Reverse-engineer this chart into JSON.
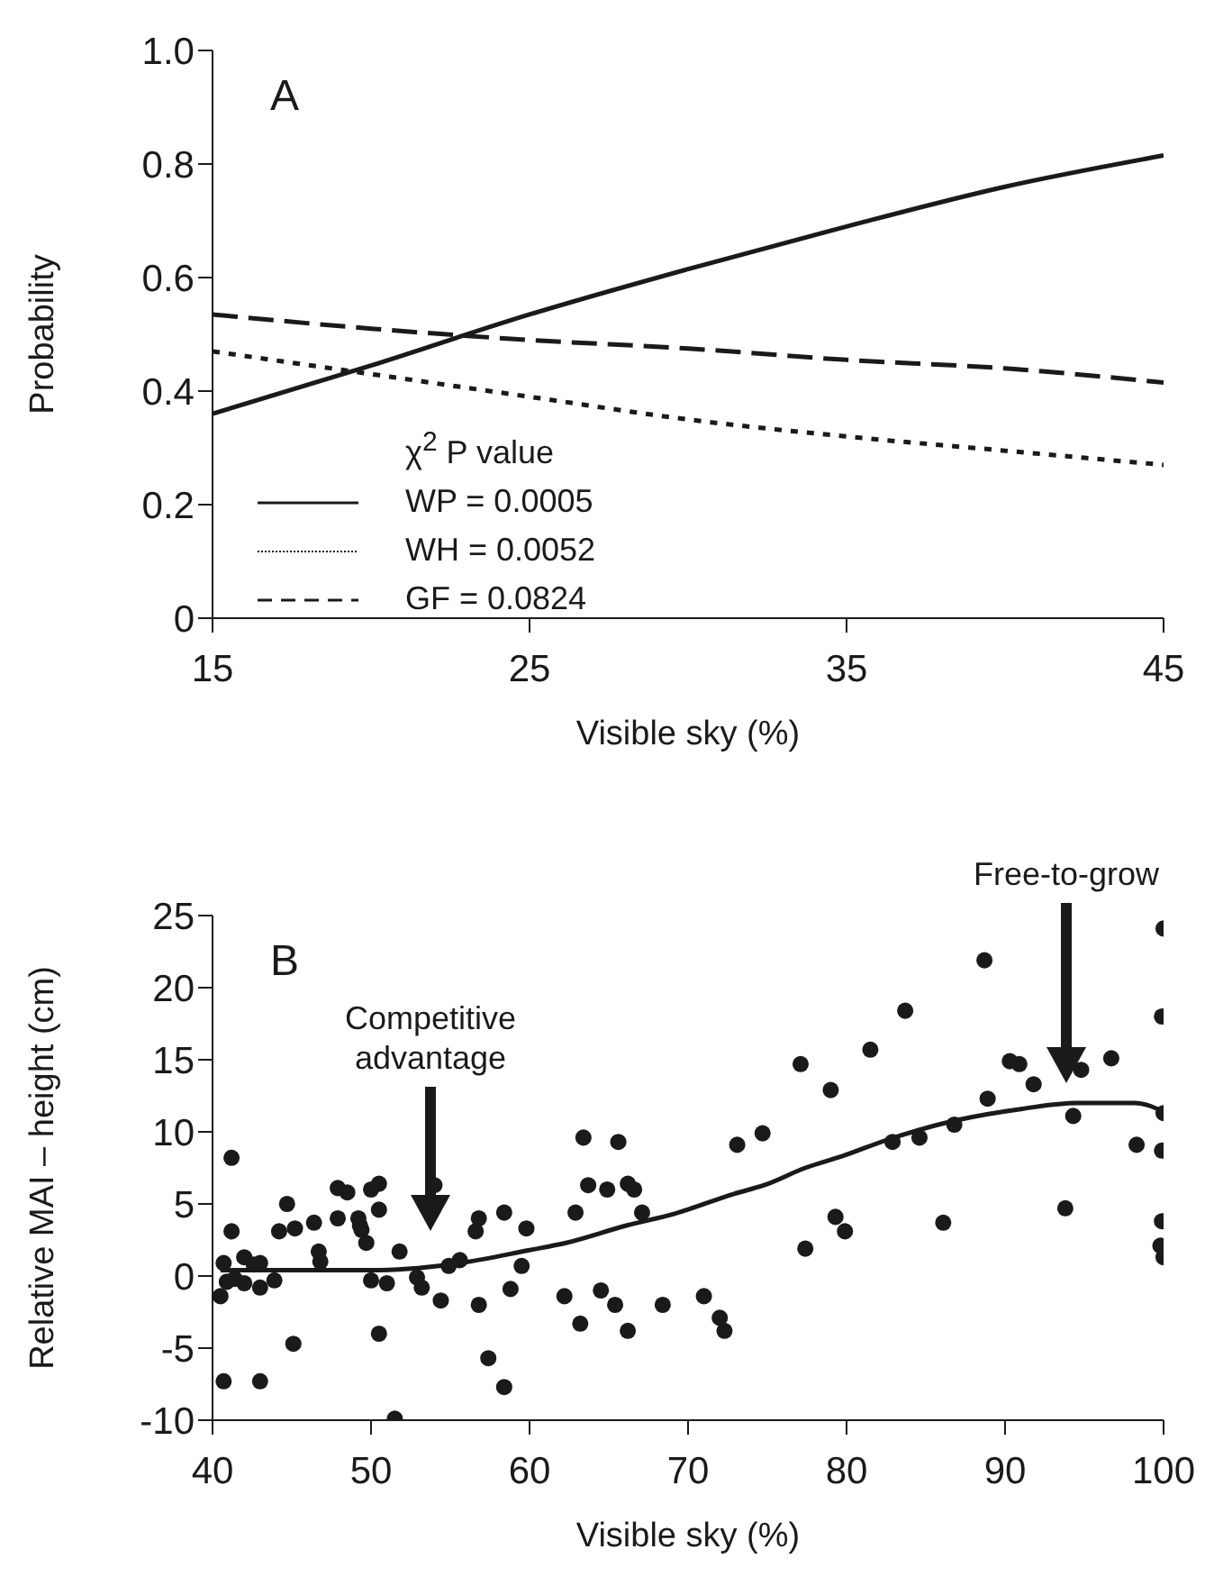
{
  "chart_data": [
    {
      "type": "line",
      "xlabel": "Visible sky (%)",
      "ylabel": "Probability",
      "legend_title": "χ$^{2}$ P value",
      "annotations": [
        "A"
      ],
      "x": [
        15,
        20,
        25,
        30,
        35,
        40,
        45
      ],
      "xlim": [
        15,
        45
      ],
      "xticks": [
        15,
        25,
        35,
        45
      ],
      "ylim": [
        0,
        1
      ],
      "yticks": [
        0,
        0.2,
        0.4,
        0.6,
        0.8,
        {
          "value": 1,
          "label": "1.0"
        }
      ],
      "legend": "bottom left",
      "grid": false,
      "series": [
        {
          "name": "WP = 0.0005",
          "color": "#1a1a1a",
          "line_style": "solid",
          "values": [
            0.36,
            0.445,
            0.535,
            0.615,
            0.69,
            0.76,
            0.815
          ]
        },
        {
          "name": "WH = 0.0052",
          "color": "#1a1a1a",
          "line_style": "dotted",
          "values": [
            0.47,
            0.43,
            0.39,
            0.35,
            0.32,
            0.295,
            0.27
          ]
        },
        {
          "name": "GF = 0.0824",
          "color": "#1a1a1a",
          "line_style": "dashed",
          "values": [
            0.535,
            0.51,
            0.49,
            0.475,
            0.455,
            0.44,
            0.415
          ]
        }
      ]
    },
    {
      "type": "scatter",
      "xlabel": "Visible sky (%)",
      "ylabel": "Relative MAI – height (cm)",
      "annotations": [
        "B",
        "Competitive\nadvantage",
        "Free-to-grow"
      ],
      "xlim": [
        40,
        100
      ],
      "xticks": [
        40,
        50,
        60,
        70,
        80,
        90,
        100
      ],
      "ylim": [
        -10,
        25
      ],
      "yticks": [
        -10,
        -5,
        0,
        5,
        10,
        15,
        20,
        25
      ],
      "legend": false,
      "grid": false,
      "marker": "circle",
      "series": [
        {
          "color": "#1a1a1a",
          "x": [
            40.5,
            40.7,
            40.9,
            40.7,
            41.2,
            41.2,
            41.4,
            42.0,
            42.0,
            42.6,
            43.0,
            43.0,
            43.0,
            43.9,
            44.2,
            44.7,
            45.2,
            45.1,
            46.4,
            46.7,
            46.8,
            47.9,
            47.9,
            48.5,
            49.2,
            49.3,
            49.4,
            49.7,
            50.0,
            50.5,
            50.5,
            50.0,
            50.5,
            51.0,
            51.5,
            51.8,
            52.9,
            53.2,
            54.0,
            54.4,
            54.9,
            55.6,
            56.6,
            56.8,
            56.8,
            57.4,
            58.4,
            58.4,
            58.8,
            59.5,
            59.8,
            62.2,
            62.9,
            63.2,
            63.4,
            63.7,
            64.5,
            64.9,
            65.4,
            65.6,
            66.2,
            66.2,
            66.6,
            67.1,
            68.4,
            71.0,
            72.0,
            72.3,
            73.1,
            74.7,
            77.1,
            77.4,
            79.0,
            79.3,
            79.9,
            81.5,
            82.9,
            83.7,
            84.6,
            86.1,
            86.8,
            88.7,
            88.9,
            90.3,
            90.9,
            91.8,
            93.8,
            94.3,
            94.8,
            96.7,
            98.3,
            99.9,
            99.9,
            99.8,
            100.0,
            100.0,
            99.9,
            100.0
          ],
          "values": [
            -1.4,
            0.9,
            -0.4,
            -7.3,
            8.2,
            3.1,
            -0.2,
            1.3,
            -0.5,
            0.8,
            0.9,
            -0.8,
            -7.3,
            -0.3,
            3.1,
            5.0,
            3.3,
            -4.7,
            3.7,
            1.7,
            1.0,
            6.1,
            4.0,
            5.8,
            4.0,
            3.5,
            3.2,
            2.3,
            6.0,
            6.4,
            4.6,
            -0.3,
            -4.0,
            -0.5,
            -9.9,
            1.7,
            -0.1,
            -0.8,
            6.3,
            -1.7,
            0.7,
            1.1,
            3.1,
            4.0,
            -2.0,
            -5.7,
            4.4,
            -7.7,
            -0.9,
            0.7,
            3.3,
            -1.4,
            4.4,
            -3.3,
            9.6,
            6.3,
            -1.0,
            6.0,
            -2.0,
            9.3,
            -3.8,
            6.4,
            6.0,
            4.4,
            -2.0,
            -1.4,
            -2.9,
            -3.8,
            9.1,
            9.9,
            14.7,
            1.9,
            12.9,
            4.1,
            3.1,
            15.7,
            9.3,
            18.4,
            9.6,
            3.7,
            10.5,
            21.9,
            12.3,
            14.9,
            14.7,
            13.3,
            4.7,
            11.1,
            14.3,
            15.1,
            9.1,
            8.7,
            3.8,
            2.1,
            1.3,
            11.3,
            18.0,
            24.1
          ]
        },
        {
          "type": "line",
          "color": "#1a1a1a",
          "line_style": "solid",
          "marker": "none",
          "x": [
            40.5,
            45,
            50,
            55,
            60,
            62.3,
            66.1,
            69.1,
            72.9,
            74.8,
            77.4,
            79.7,
            82.7,
            86.9,
            91.1,
            94.5,
            98.2,
            100
          ],
          "values": [
            0.4,
            0.4,
            0.4,
            0.8,
            1.8,
            2.3,
            3.5,
            4.3,
            5.7,
            6.3,
            7.5,
            8.3,
            9.5,
            10.8,
            11.6,
            12.0,
            12.0,
            11.4
          ]
        }
      ]
    }
  ]
}
